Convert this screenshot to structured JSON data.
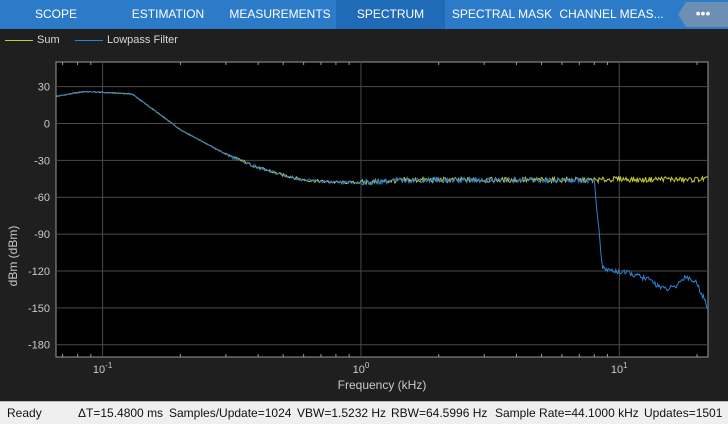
{
  "tabs": [
    {
      "label": "SCOPE"
    },
    {
      "label": "ESTIMATION"
    },
    {
      "label": "MEASUREMENTS"
    },
    {
      "label": "SPECTRUM"
    },
    {
      "label": "SPECTRAL MASK"
    },
    {
      "label": "CHANNEL MEAS..."
    }
  ],
  "active_tab": "SPECTRUM",
  "collapse_glyph": "•••",
  "colors": {
    "tab_bg": "#2c7bc9",
    "sum": "#c8c832",
    "lowpass": "#2f7fd2",
    "grid": "#4a4a4a"
  },
  "legend": [
    {
      "label": "Sum",
      "color": "#c8c832"
    },
    {
      "label": "Lowpass Filter",
      "color": "#2f7fd2"
    }
  ],
  "chart_data": {
    "type": "line",
    "xlabel": "Frequency (kHz)",
    "ylabel": "dBm (dBm)",
    "xscale": "log",
    "xlim": [
      0.066,
      22.05
    ],
    "ylim": [
      -190,
      50
    ],
    "yticks": [
      30,
      0,
      -30,
      -60,
      -90,
      -120,
      -150,
      -180
    ],
    "xtick_labels": [
      {
        "base": "10",
        "exp": "-1",
        "value": 0.1
      },
      {
        "base": "10",
        "exp": "0",
        "value": 1
      },
      {
        "base": "10",
        "exp": "1",
        "value": 10
      }
    ],
    "grid": true,
    "series": [
      {
        "name": "Sum",
        "color": "#c8c832",
        "x": [
          0.066,
          0.085,
          0.13,
          0.2,
          0.3,
          0.4,
          0.5,
          0.6,
          0.8,
          1.0,
          1.5,
          2,
          3,
          5,
          7,
          8.5,
          10,
          12,
          15,
          18,
          22.05
        ],
        "y": [
          22,
          26,
          24,
          -5,
          -25,
          -36,
          -42,
          -46,
          -48,
          -48,
          -46,
          -46,
          -46,
          -46,
          -46,
          -46,
          -45,
          -46,
          -45,
          -46,
          -45
        ]
      },
      {
        "name": "Lowpass Filter",
        "color": "#2f7fd2",
        "x": [
          0.066,
          0.085,
          0.13,
          0.2,
          0.3,
          0.4,
          0.5,
          0.6,
          0.8,
          1.0,
          1.5,
          2,
          3,
          5,
          7,
          8.0,
          8.6,
          9.5,
          11,
          13,
          15,
          16.5,
          18,
          20,
          22.05
        ],
        "y": [
          22,
          26,
          24,
          -5,
          -25,
          -36,
          -42,
          -46,
          -48,
          -48,
          -46,
          -46,
          -46,
          -46,
          -46,
          -46,
          -118,
          -120,
          -122,
          -127,
          -135,
          -133,
          -124,
          -130,
          -150
        ]
      }
    ]
  },
  "status": {
    "ready": "Ready",
    "dt": "ΔT=15.4800 ms",
    "samples": "Samples/Update=1024",
    "vbw": "VBW=1.5232 Hz",
    "rbw": "RBW=64.5996 Hz",
    "rate": "Sample Rate=44.1000 kHz",
    "updates": "Updates=1501"
  }
}
